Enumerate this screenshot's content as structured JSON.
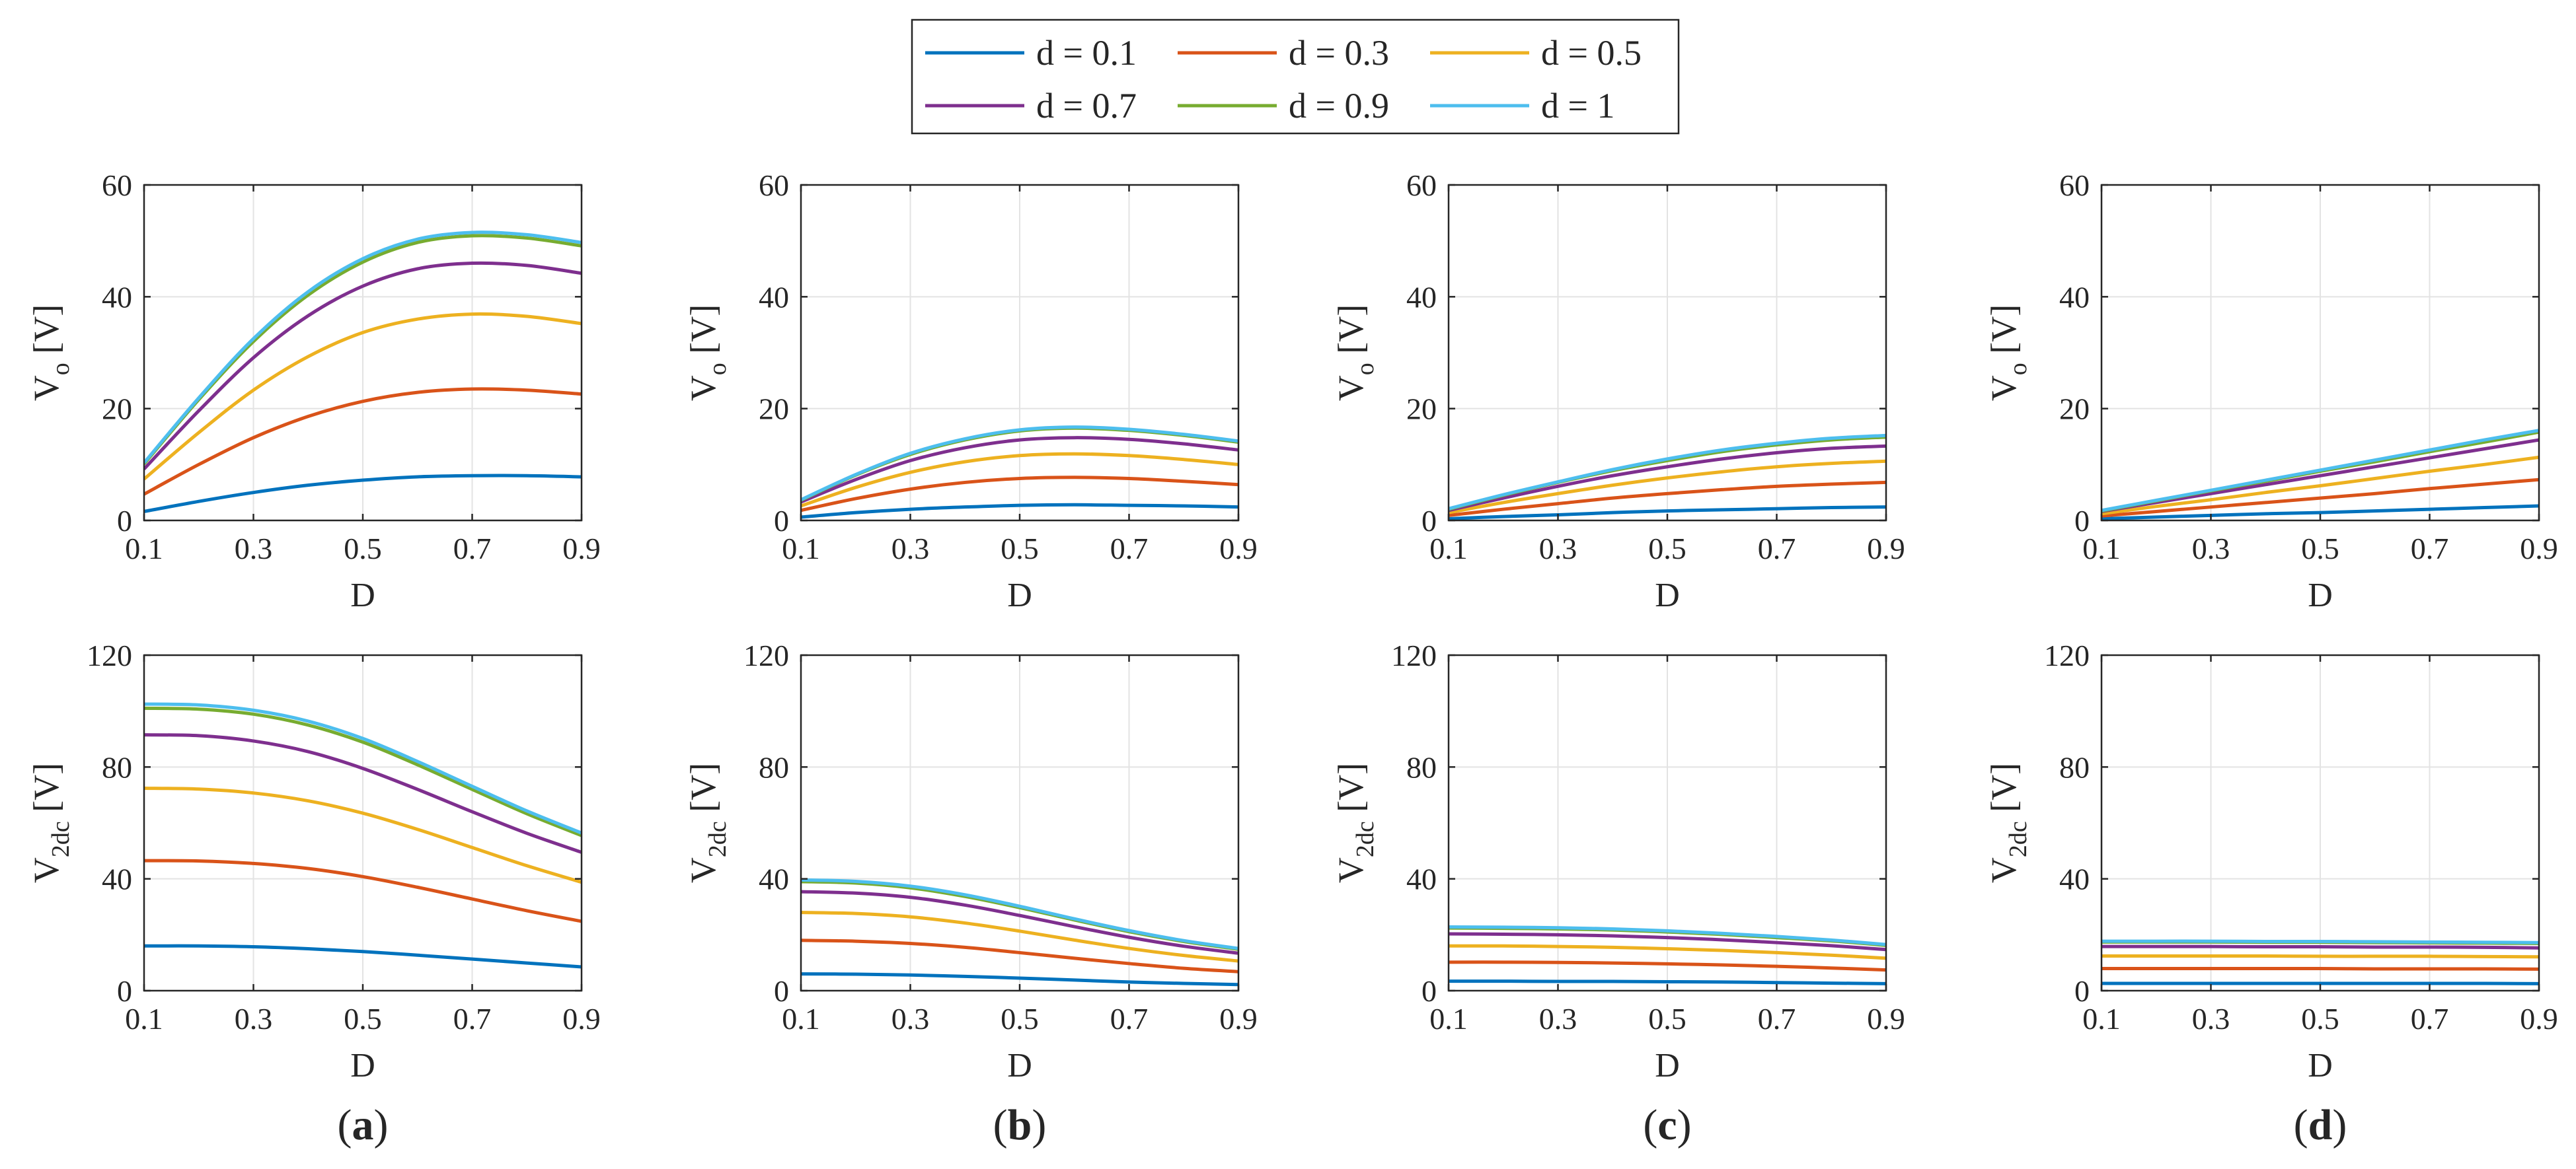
{
  "legend": {
    "entries": [
      {
        "label": "d = 0.1",
        "color": "#0072BD"
      },
      {
        "label": "d = 0.3",
        "color": "#D95319"
      },
      {
        "label": "d = 0.5",
        "color": "#EDB120"
      },
      {
        "label": "d = 0.7",
        "color": "#7E2F8E"
      },
      {
        "label": "d = 0.9",
        "color": "#77AC30"
      },
      {
        "label": "d = 1",
        "color": "#4DBEEE"
      }
    ]
  },
  "panel_labels": [
    "(a)",
    "(b)",
    "(c)",
    "(d)"
  ],
  "chart_data": [
    {
      "id": "a-top",
      "panel": "(a)",
      "type": "line",
      "xlabel": "D",
      "ylabel_main": "V",
      "ylabel_sub": "o",
      "ylabel_tail": " [V]",
      "xlim": [
        0.1,
        0.9
      ],
      "ylim": [
        0,
        60
      ],
      "xticks": [
        "0.1",
        "0.3",
        "0.5",
        "0.7",
        "0.9"
      ],
      "yticks": [
        "0",
        "20",
        "40",
        "60"
      ],
      "x": [
        0.1,
        0.2,
        0.3,
        0.4,
        0.5,
        0.6,
        0.7,
        0.8,
        0.9
      ],
      "series": [
        {
          "name": "d = 0.1",
          "values": [
            1.6,
            3.4,
            5.0,
            6.3,
            7.2,
            7.8,
            8.0,
            8.0,
            7.8
          ]
        },
        {
          "name": "d = 0.3",
          "values": [
            4.7,
            10.0,
            14.8,
            18.6,
            21.3,
            22.9,
            23.5,
            23.3,
            22.6
          ]
        },
        {
          "name": "d = 0.5",
          "values": [
            7.4,
            15.7,
            23.3,
            29.3,
            33.6,
            36.0,
            36.9,
            36.5,
            35.2
          ]
        },
        {
          "name": "d = 0.7",
          "values": [
            9.2,
            19.6,
            29.1,
            36.6,
            41.9,
            45.0,
            46.0,
            45.6,
            44.2
          ]
        },
        {
          "name": "d = 0.9",
          "values": [
            10.1,
            21.6,
            32.0,
            40.3,
            46.2,
            49.7,
            50.9,
            50.5,
            49.1
          ]
        },
        {
          "name": "d = 1",
          "values": [
            10.3,
            21.9,
            32.5,
            40.9,
            46.8,
            50.3,
            51.5,
            51.1,
            49.7
          ]
        }
      ]
    },
    {
      "id": "b-top",
      "panel": "(b)",
      "type": "line",
      "xlabel": "D",
      "ylabel_main": "V",
      "ylabel_sub": "o",
      "ylabel_tail": " [V]",
      "xlim": [
        0.1,
        0.9
      ],
      "ylim": [
        0,
        60
      ],
      "xticks": [
        "0.1",
        "0.3",
        "0.5",
        "0.7",
        "0.9"
      ],
      "yticks": [
        "0",
        "20",
        "40",
        "60"
      ],
      "x": [
        0.1,
        0.2,
        0.3,
        0.4,
        0.5,
        0.6,
        0.7,
        0.8,
        0.9
      ],
      "series": [
        {
          "name": "d = 0.1",
          "values": [
            0.6,
            1.4,
            2.0,
            2.4,
            2.7,
            2.8,
            2.7,
            2.6,
            2.4
          ]
        },
        {
          "name": "d = 0.3",
          "values": [
            1.8,
            3.9,
            5.6,
            6.8,
            7.5,
            7.7,
            7.5,
            7.0,
            6.4
          ]
        },
        {
          "name": "d = 0.5",
          "values": [
            2.6,
            5.9,
            8.6,
            10.5,
            11.6,
            11.9,
            11.6,
            10.9,
            10.0
          ]
        },
        {
          "name": "d = 0.7",
          "values": [
            3.3,
            7.3,
            10.7,
            13.0,
            14.4,
            14.8,
            14.5,
            13.7,
            12.6
          ]
        },
        {
          "name": "d = 0.9",
          "values": [
            3.6,
            8.1,
            11.8,
            14.4,
            16.0,
            16.5,
            16.1,
            15.2,
            14.0
          ]
        },
        {
          "name": "d = 1",
          "values": [
            3.7,
            8.2,
            12.0,
            14.6,
            16.2,
            16.7,
            16.3,
            15.4,
            14.2
          ]
        }
      ]
    },
    {
      "id": "c-top",
      "panel": "(c)",
      "type": "line",
      "xlabel": "D",
      "ylabel_main": "V",
      "ylabel_sub": "o",
      "ylabel_tail": " [V]",
      "xlim": [
        0.1,
        0.9
      ],
      "ylim": [
        0,
        60
      ],
      "xticks": [
        "0.1",
        "0.3",
        "0.5",
        "0.7",
        "0.9"
      ],
      "yticks": [
        "0",
        "20",
        "40",
        "60"
      ],
      "x": [
        0.1,
        0.2,
        0.3,
        0.4,
        0.5,
        0.6,
        0.7,
        0.8,
        0.9
      ],
      "series": [
        {
          "name": "d = 0.1",
          "values": [
            0.3,
            0.7,
            1.0,
            1.4,
            1.7,
            1.9,
            2.1,
            2.3,
            2.4
          ]
        },
        {
          "name": "d = 0.3",
          "values": [
            0.9,
            2.0,
            3.0,
            4.0,
            4.8,
            5.5,
            6.1,
            6.5,
            6.8
          ]
        },
        {
          "name": "d = 0.5",
          "values": [
            1.4,
            3.2,
            4.8,
            6.3,
            7.6,
            8.7,
            9.6,
            10.2,
            10.6
          ]
        },
        {
          "name": "d = 0.7",
          "values": [
            1.8,
            4.0,
            6.1,
            8.0,
            9.6,
            11.0,
            12.1,
            12.9,
            13.3
          ]
        },
        {
          "name": "d = 0.9",
          "values": [
            2.0,
            4.5,
            6.8,
            8.9,
            10.7,
            12.3,
            13.5,
            14.4,
            14.9
          ]
        },
        {
          "name": "d = 1",
          "values": [
            2.1,
            4.6,
            6.9,
            9.1,
            11.0,
            12.6,
            13.8,
            14.7,
            15.2
          ]
        }
      ]
    },
    {
      "id": "d-top",
      "panel": "(d)",
      "type": "line",
      "xlabel": "D",
      "ylabel_main": "V",
      "ylabel_sub": "o",
      "ylabel_tail": " [V]",
      "xlim": [
        0.1,
        0.9
      ],
      "ylim": [
        0,
        60
      ],
      "xticks": [
        "0.1",
        "0.3",
        "0.5",
        "0.7",
        "0.9"
      ],
      "yticks": [
        "0",
        "20",
        "40",
        "60"
      ],
      "x": [
        0.1,
        0.2,
        0.3,
        0.4,
        0.5,
        0.6,
        0.7,
        0.8,
        0.9
      ],
      "series": [
        {
          "name": "d = 0.1",
          "values": [
            0.3,
            0.6,
            0.9,
            1.2,
            1.4,
            1.7,
            2.0,
            2.3,
            2.6
          ]
        },
        {
          "name": "d = 0.3",
          "values": [
            0.8,
            1.6,
            2.4,
            3.2,
            4.0,
            4.8,
            5.7,
            6.5,
            7.3
          ]
        },
        {
          "name": "d = 0.5",
          "values": [
            1.2,
            2.5,
            3.7,
            5.0,
            6.2,
            7.5,
            8.8,
            10.0,
            11.3
          ]
        },
        {
          "name": "d = 0.7",
          "values": [
            1.6,
            3.2,
            4.8,
            6.4,
            8.0,
            9.6,
            11.2,
            12.8,
            14.4
          ]
        },
        {
          "name": "d = 0.9",
          "values": [
            1.7,
            3.5,
            5.3,
            7.0,
            8.8,
            10.5,
            12.3,
            14.0,
            15.8
          ]
        },
        {
          "name": "d = 1",
          "values": [
            1.8,
            3.6,
            5.4,
            7.2,
            9.0,
            10.8,
            12.6,
            14.4,
            16.1
          ]
        }
      ]
    },
    {
      "id": "a-bottom",
      "panel": "(a)",
      "type": "line",
      "xlabel": "D",
      "ylabel_main": "V",
      "ylabel_sub": "2dc",
      "ylabel_tail": " [V]",
      "xlim": [
        0.1,
        0.9
      ],
      "ylim": [
        0,
        120
      ],
      "xticks": [
        "0.1",
        "0.3",
        "0.5",
        "0.7",
        "0.9"
      ],
      "yticks": [
        "0",
        "40",
        "80",
        "120"
      ],
      "x": [
        0.1,
        0.2,
        0.3,
        0.4,
        0.5,
        0.6,
        0.7,
        0.8,
        0.9
      ],
      "series": [
        {
          "name": "d = 0.1",
          "values": [
            16.0,
            16.0,
            15.7,
            15.0,
            14.0,
            12.7,
            11.3,
            9.9,
            8.5
          ]
        },
        {
          "name": "d = 0.3",
          "values": [
            46.5,
            46.4,
            45.5,
            43.7,
            40.8,
            37.0,
            32.8,
            28.6,
            24.8
          ]
        },
        {
          "name": "d = 0.5",
          "values": [
            72.4,
            72.1,
            70.7,
            67.9,
            63.5,
            57.7,
            51.2,
            44.7,
            38.8
          ]
        },
        {
          "name": "d = 0.7",
          "values": [
            91.5,
            91.2,
            89.3,
            85.5,
            79.5,
            72.0,
            64.0,
            56.3,
            49.5
          ]
        },
        {
          "name": "d = 0.9",
          "values": [
            101.0,
            100.7,
            98.9,
            95.0,
            88.9,
            80.8,
            72.0,
            63.3,
            55.5
          ]
        },
        {
          "name": "d = 1",
          "values": [
            102.5,
            102.2,
            100.3,
            96.4,
            90.2,
            82.0,
            73.1,
            64.3,
            56.4
          ]
        }
      ]
    },
    {
      "id": "b-bottom",
      "panel": "(b)",
      "type": "line",
      "xlabel": "D",
      "ylabel_main": "V",
      "ylabel_sub": "2dc",
      "ylabel_tail": " [V]",
      "xlim": [
        0.1,
        0.9
      ],
      "ylim": [
        0,
        120
      ],
      "xticks": [
        "0.1",
        "0.3",
        "0.5",
        "0.7",
        "0.9"
      ],
      "yticks": [
        "0",
        "40",
        "80",
        "120"
      ],
      "x": [
        0.1,
        0.2,
        0.3,
        0.4,
        0.5,
        0.6,
        0.7,
        0.8,
        0.9
      ],
      "series": [
        {
          "name": "d = 0.1",
          "values": [
            6.0,
            5.9,
            5.6,
            5.1,
            4.5,
            3.8,
            3.1,
            2.6,
            2.2
          ]
        },
        {
          "name": "d = 0.3",
          "values": [
            18.0,
            17.7,
            16.9,
            15.5,
            13.6,
            11.6,
            9.7,
            8.0,
            6.8
          ]
        },
        {
          "name": "d = 0.5",
          "values": [
            28.0,
            27.6,
            26.4,
            24.2,
            21.3,
            18.1,
            15.1,
            12.6,
            10.6
          ]
        },
        {
          "name": "d = 0.7",
          "values": [
            35.4,
            34.9,
            33.4,
            30.6,
            26.9,
            22.9,
            19.1,
            15.9,
            13.4
          ]
        },
        {
          "name": "d = 0.9",
          "values": [
            39.0,
            38.5,
            36.8,
            33.7,
            29.7,
            25.3,
            21.1,
            17.6,
            14.8
          ]
        },
        {
          "name": "d = 1",
          "values": [
            39.6,
            39.1,
            37.4,
            34.3,
            30.2,
            25.7,
            21.5,
            17.9,
            15.1
          ]
        }
      ]
    },
    {
      "id": "c-bottom",
      "panel": "(c)",
      "type": "line",
      "xlabel": "D",
      "ylabel_main": "V",
      "ylabel_sub": "2dc",
      "ylabel_tail": " [V]",
      "xlim": [
        0.1,
        0.9
      ],
      "ylim": [
        0,
        120
      ],
      "xticks": [
        "0.1",
        "0.3",
        "0.5",
        "0.7",
        "0.9"
      ],
      "yticks": [
        "0",
        "40",
        "80",
        "120"
      ],
      "x": [
        0.1,
        0.2,
        0.3,
        0.4,
        0.5,
        0.6,
        0.7,
        0.8,
        0.9
      ],
      "series": [
        {
          "name": "d = 0.1",
          "values": [
            3.4,
            3.4,
            3.3,
            3.3,
            3.2,
            3.1,
            2.9,
            2.7,
            2.5
          ]
        },
        {
          "name": "d = 0.3",
          "values": [
            10.2,
            10.2,
            10.1,
            9.9,
            9.6,
            9.2,
            8.7,
            8.1,
            7.4
          ]
        },
        {
          "name": "d = 0.5",
          "values": [
            16.0,
            16.0,
            15.8,
            15.5,
            15.0,
            14.4,
            13.6,
            12.7,
            11.6
          ]
        },
        {
          "name": "d = 0.7",
          "values": [
            20.3,
            20.2,
            20.0,
            19.6,
            19.0,
            18.2,
            17.2,
            16.1,
            14.7
          ]
        },
        {
          "name": "d = 0.9",
          "values": [
            22.4,
            22.3,
            22.1,
            21.7,
            21.0,
            20.1,
            19.0,
            17.8,
            16.2
          ]
        },
        {
          "name": "d = 1",
          "values": [
            22.8,
            22.7,
            22.5,
            22.1,
            21.4,
            20.5,
            19.4,
            18.1,
            16.5
          ]
        }
      ]
    },
    {
      "id": "d-bottom",
      "panel": "(d)",
      "type": "line",
      "xlabel": "D",
      "ylabel_main": "V",
      "ylabel_sub": "2dc",
      "ylabel_tail": " [V]",
      "xlim": [
        0.1,
        0.9
      ],
      "ylim": [
        0,
        120
      ],
      "xticks": [
        "0.1",
        "0.3",
        "0.5",
        "0.7",
        "0.9"
      ],
      "yticks": [
        "0",
        "40",
        "80",
        "120"
      ],
      "x": [
        0.1,
        0.2,
        0.3,
        0.4,
        0.5,
        0.6,
        0.7,
        0.8,
        0.9
      ],
      "series": [
        {
          "name": "d = 0.1",
          "values": [
            2.6,
            2.6,
            2.6,
            2.6,
            2.6,
            2.6,
            2.6,
            2.6,
            2.5
          ]
        },
        {
          "name": "d = 0.3",
          "values": [
            7.9,
            7.9,
            7.9,
            7.9,
            7.9,
            7.8,
            7.8,
            7.8,
            7.7
          ]
        },
        {
          "name": "d = 0.5",
          "values": [
            12.4,
            12.4,
            12.4,
            12.4,
            12.3,
            12.3,
            12.3,
            12.2,
            12.1
          ]
        },
        {
          "name": "d = 0.7",
          "values": [
            15.8,
            15.8,
            15.8,
            15.7,
            15.7,
            15.6,
            15.6,
            15.5,
            15.3
          ]
        },
        {
          "name": "d = 0.9",
          "values": [
            17.4,
            17.4,
            17.4,
            17.3,
            17.3,
            17.2,
            17.1,
            17.0,
            16.9
          ]
        },
        {
          "name": "d = 1",
          "values": [
            17.7,
            17.7,
            17.7,
            17.6,
            17.6,
            17.5,
            17.4,
            17.3,
            17.2
          ]
        }
      ]
    }
  ]
}
